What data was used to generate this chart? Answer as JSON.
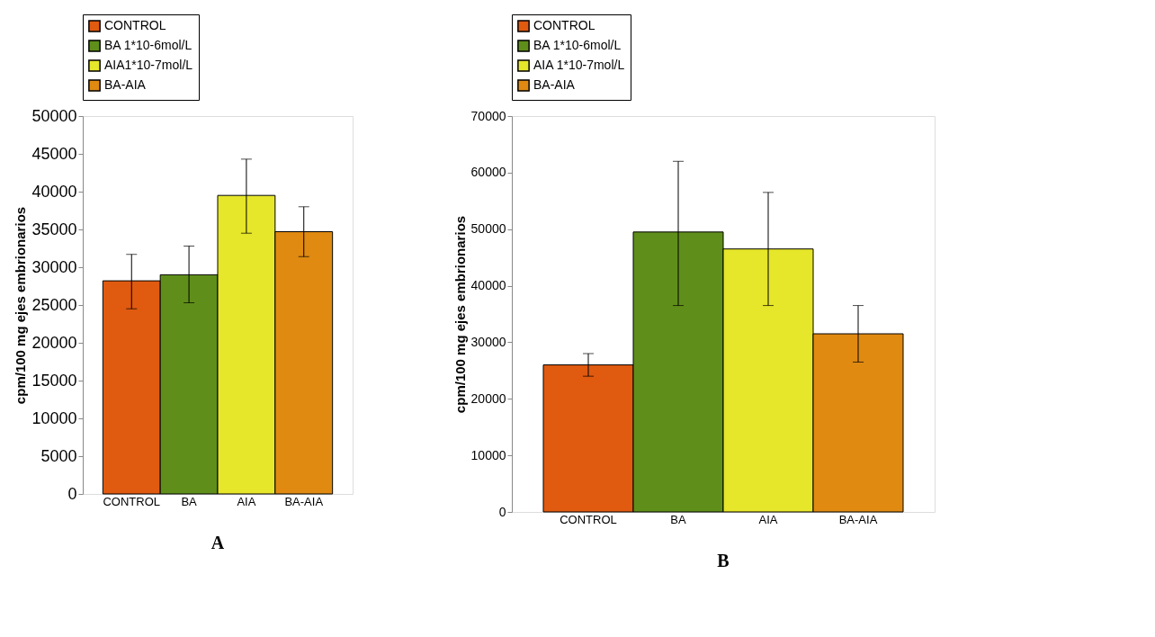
{
  "chart_data": [
    {
      "type": "bar",
      "title": "A",
      "ylabel": "cpm/100 mg ejes embrionarios",
      "categories": [
        "CONTROL",
        "BA",
        "AIA",
        "BA-AIA"
      ],
      "ylim": [
        0,
        50000
      ],
      "yticks": [
        0,
        5000,
        10000,
        15000,
        20000,
        25000,
        30000,
        35000,
        40000,
        45000,
        50000
      ],
      "legend": "top",
      "grid": false,
      "series": [
        {
          "name": "CONTROL",
          "color": "#e05a10",
          "values": [
            28200,
            null,
            null,
            null
          ],
          "errors": [
            [
              24500,
              31700
            ],
            null,
            null,
            null
          ]
        },
        {
          "name": "BA 1*10-6mol/L",
          "color": "#5f8f1a",
          "values": [
            null,
            29000,
            null,
            null
          ],
          "errors": [
            null,
            [
              25300,
              32800
            ],
            null,
            null
          ]
        },
        {
          "name": "AIA1*10-7mol/L",
          "color": "#e6e62a",
          "values": [
            null,
            null,
            39500,
            null
          ],
          "errors": [
            null,
            null,
            [
              34500,
              44300
            ],
            null
          ]
        },
        {
          "name": "BA-AIA",
          "color": "#e08a12",
          "values": [
            null,
            null,
            null,
            34700
          ],
          "errors": [
            null,
            null,
            null,
            [
              31400,
              38000
            ]
          ]
        }
      ]
    },
    {
      "type": "bar",
      "title": "B",
      "ylabel": "cpm/100 mg ejes embrionarios",
      "categories": [
        "CONTROL",
        "BA",
        "AIA",
        "BA-AIA"
      ],
      "ylim": [
        0,
        70000
      ],
      "yticks": [
        0,
        10000,
        20000,
        30000,
        40000,
        50000,
        60000,
        70000
      ],
      "legend": "top",
      "grid": false,
      "series": [
        {
          "name": "CONTROL",
          "color": "#e05a10",
          "values": [
            26000,
            null,
            null,
            null
          ],
          "errors": [
            [
              24000,
              28000
            ],
            null,
            null,
            null
          ]
        },
        {
          "name": "BA 1*10-6mol/L",
          "color": "#5f8f1a",
          "values": [
            null,
            49500,
            null,
            null
          ],
          "errors": [
            null,
            [
              36500,
              62000
            ],
            null,
            null
          ]
        },
        {
          "name": "AIA 1*10-7mol/L",
          "color": "#e6e62a",
          "values": [
            null,
            null,
            46500,
            null
          ],
          "errors": [
            null,
            null,
            [
              36500,
              56500
            ],
            null
          ]
        },
        {
          "name": "BA-AIA",
          "color": "#e08a12",
          "values": [
            null,
            null,
            null,
            31500
          ],
          "errors": [
            null,
            null,
            null,
            [
              26500,
              36500
            ]
          ]
        }
      ]
    }
  ]
}
